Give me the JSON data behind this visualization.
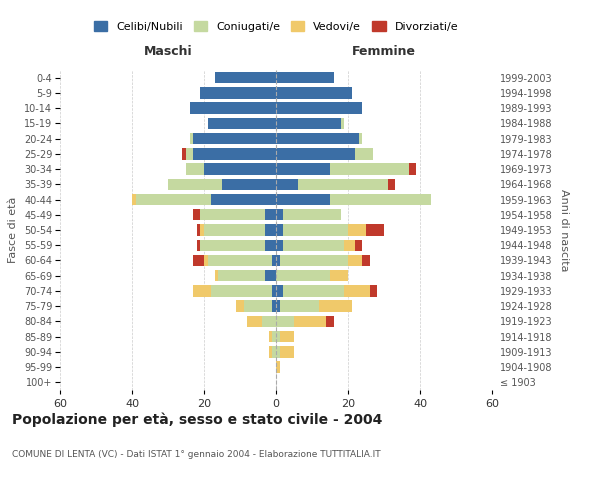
{
  "age_groups": [
    "100+",
    "95-99",
    "90-94",
    "85-89",
    "80-84",
    "75-79",
    "70-74",
    "65-69",
    "60-64",
    "55-59",
    "50-54",
    "45-49",
    "40-44",
    "35-39",
    "30-34",
    "25-29",
    "20-24",
    "15-19",
    "10-14",
    "5-9",
    "0-4"
  ],
  "birth_years": [
    "≤ 1903",
    "1904-1908",
    "1909-1913",
    "1914-1918",
    "1919-1923",
    "1924-1928",
    "1929-1933",
    "1934-1938",
    "1939-1943",
    "1944-1948",
    "1949-1953",
    "1954-1958",
    "1959-1963",
    "1964-1968",
    "1969-1973",
    "1974-1978",
    "1979-1983",
    "1984-1988",
    "1989-1993",
    "1994-1998",
    "1999-2003"
  ],
  "maschi": {
    "celibi": [
      0,
      0,
      0,
      0,
      0,
      1,
      1,
      3,
      1,
      3,
      3,
      3,
      18,
      15,
      20,
      23,
      23,
      19,
      24,
      21,
      17
    ],
    "coniugati": [
      0,
      0,
      1,
      1,
      4,
      8,
      17,
      13,
      18,
      18,
      17,
      18,
      21,
      15,
      5,
      2,
      1,
      0,
      0,
      0,
      0
    ],
    "vedovi": [
      0,
      0,
      1,
      1,
      4,
      2,
      5,
      1,
      1,
      0,
      1,
      0,
      1,
      0,
      0,
      0,
      0,
      0,
      0,
      0,
      0
    ],
    "divorziati": [
      0,
      0,
      0,
      0,
      0,
      0,
      0,
      0,
      3,
      1,
      1,
      2,
      0,
      0,
      0,
      1,
      0,
      0,
      0,
      0,
      0
    ]
  },
  "femmine": {
    "nubili": [
      0,
      0,
      0,
      0,
      0,
      1,
      2,
      0,
      1,
      2,
      2,
      2,
      15,
      6,
      15,
      22,
      23,
      18,
      24,
      21,
      16
    ],
    "coniugate": [
      0,
      0,
      1,
      1,
      5,
      11,
      17,
      15,
      19,
      17,
      18,
      16,
      28,
      25,
      22,
      5,
      1,
      1,
      0,
      0,
      0
    ],
    "vedove": [
      0,
      1,
      4,
      4,
      9,
      9,
      7,
      5,
      4,
      3,
      5,
      0,
      0,
      0,
      0,
      0,
      0,
      0,
      0,
      0,
      0
    ],
    "divorziate": [
      0,
      0,
      0,
      0,
      2,
      0,
      2,
      0,
      2,
      2,
      5,
      0,
      0,
      2,
      2,
      0,
      0,
      0,
      0,
      0,
      0
    ]
  },
  "colors": {
    "celibi": "#3b6ea5",
    "coniugati": "#c5d9a0",
    "vedovi": "#f0c96a",
    "divorziati": "#c0392b"
  },
  "xlim": 60,
  "title": "Popolazione per età, sesso e stato civile - 2004",
  "subtitle": "COMUNE DI LENTA (VC) - Dati ISTAT 1° gennaio 2004 - Elaborazione TUTTITALIA.IT",
  "ylabel_left": "Fasce di età",
  "ylabel_right": "Anni di nascita",
  "xlabel_maschi": "Maschi",
  "xlabel_femmine": "Femmine",
  "legend_labels": [
    "Celibi/Nubili",
    "Coniugati/e",
    "Vedovi/e",
    "Divorziati/e"
  ]
}
